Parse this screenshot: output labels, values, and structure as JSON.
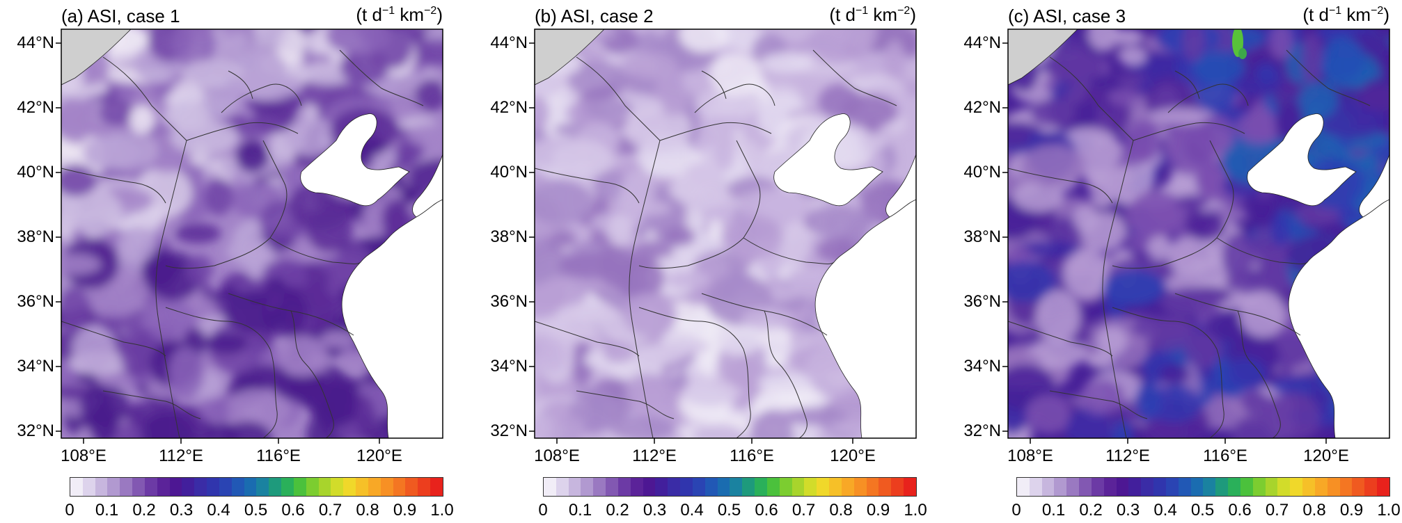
{
  "panels": [
    {
      "title": "(a) ASI, case 1",
      "unit_base": "(t d",
      "unit_exp1": "−1",
      "unit_mid": " km",
      "unit_exp2": "−2",
      "unit_end": ")",
      "case_level": 1
    },
    {
      "title": "(b) ASI, case 2",
      "unit_base": "(t d",
      "unit_exp1": "−1",
      "unit_mid": " km",
      "unit_exp2": "−2",
      "unit_end": ")",
      "case_level": 2
    },
    {
      "title": "(c) ASI, case 3",
      "unit_base": "(t d",
      "unit_exp1": "−1",
      "unit_mid": " km",
      "unit_exp2": "−2",
      "unit_end": ")",
      "case_level": 3
    }
  ],
  "lat_labels": [
    "44°N",
    "42°N",
    "40°N",
    "38°N",
    "36°N",
    "34°N",
    "32°N"
  ],
  "lon_labels": [
    "108°E",
    "112°E",
    "116°E",
    "120°E"
  ],
  "colorbar": {
    "ticks": [
      "0",
      "0.1",
      "0.2",
      "0.3",
      "0.4",
      "0.5",
      "0.6",
      "0.7",
      "0.8",
      "0.9",
      "1.0"
    ],
    "colors": [
      "#f1edf7",
      "#ddd3ec",
      "#c7b6de",
      "#b199d0",
      "#9a79c1",
      "#8258b2",
      "#6c3aa5",
      "#5b2399",
      "#4d1793",
      "#421f9c",
      "#3a2ca6",
      "#3035ad",
      "#2a44b3",
      "#2158b5",
      "#1a6cb0",
      "#1a82a0",
      "#1e9a7c",
      "#2ab05a",
      "#4bc13c",
      "#7ccd30",
      "#a8d42c",
      "#d2dc2a",
      "#f0d82a",
      "#f6c028",
      "#f8a826",
      "#f79024",
      "#f47622",
      "#f05a20",
      "#ec3e1e",
      "#e8221c"
    ]
  },
  "colors": {
    "land_gray": "#cfcfcf",
    "sea_white": "#ffffff",
    "border_line": "#333333",
    "coast_line": "#222222"
  }
}
